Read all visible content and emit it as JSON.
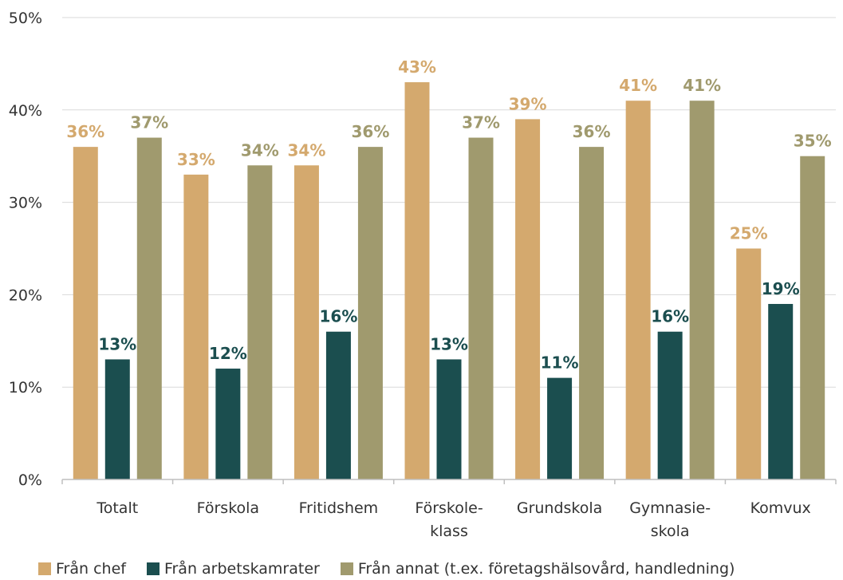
{
  "chart_data": {
    "type": "bar",
    "title": "",
    "xlabel": "",
    "ylabel": "",
    "ylim": [
      0,
      50
    ],
    "yticks": [
      "0%",
      "10%",
      "20%",
      "30%",
      "40%",
      "50%"
    ],
    "grid": true,
    "legend_position": "bottom",
    "categories": [
      [
        "Totalt"
      ],
      [
        "Förskola"
      ],
      [
        "Fritidshem"
      ],
      [
        "Förskole-",
        "klass"
      ],
      [
        "Grundskola"
      ],
      [
        "Gymnasie-",
        "skola"
      ],
      [
        "Komvux"
      ]
    ],
    "series": [
      {
        "name": "Från chef",
        "color": "#D4A96E",
        "label_color": "#D4A96E",
        "values": [
          36,
          33,
          34,
          43,
          39,
          41,
          25
        ],
        "labels": [
          "36%",
          "33%",
          "34%",
          "43%",
          "39%",
          "41%",
          "25%"
        ]
      },
      {
        "name": "Från arbetskamrater",
        "color": "#1B4E4F",
        "label_color": "#1B4E4F",
        "values": [
          13,
          12,
          16,
          13,
          11,
          16,
          19
        ],
        "labels": [
          "13%",
          "12%",
          "16%",
          "13%",
          "11%",
          "16%",
          "19%"
        ]
      },
      {
        "name": "Från annat (t.ex. företagshälsovård, handledning)",
        "color": "#A09A6E",
        "label_color": "#A09A6E",
        "values": [
          37,
          34,
          36,
          37,
          36,
          41,
          35
        ],
        "labels": [
          "37%",
          "34%",
          "36%",
          "37%",
          "36%",
          "41%",
          "35%"
        ]
      }
    ]
  }
}
